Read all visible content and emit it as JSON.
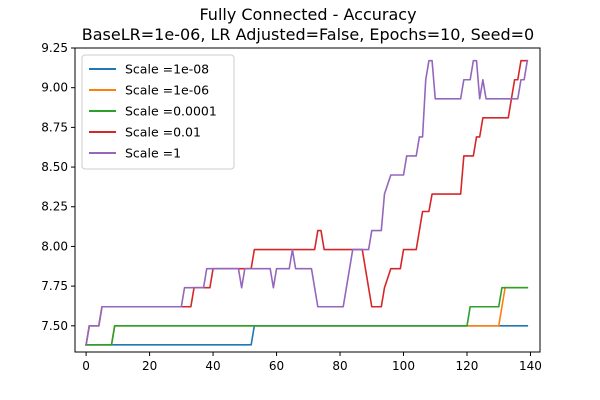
{
  "chart_data": {
    "type": "line",
    "title": "Fully Connected - Accuracy",
    "subtitle": "BaseLR=1e-06, LR Adjusted=False, Epochs=10, Seed=0",
    "xlabel": "",
    "ylabel": "",
    "xlim": [
      -3.5,
      143
    ],
    "ylim": [
      7.335,
      9.25
    ],
    "x_ticks": [
      0,
      20,
      40,
      60,
      80,
      100,
      120,
      140
    ],
    "x_tick_labels": [
      "0",
      "20",
      "40",
      "60",
      "80",
      "100",
      "120",
      "140"
    ],
    "y_ticks": [
      7.5,
      7.75,
      8.0,
      8.25,
      8.5,
      8.75,
      9.0,
      9.25
    ],
    "y_tick_labels": [
      "7.50",
      "7.75",
      "8.00",
      "8.25",
      "8.50",
      "8.75",
      "9.00",
      "9.25"
    ],
    "grid": false,
    "legend_position": "upper-left",
    "series": [
      {
        "name": "Scale =1e-08",
        "color": "#1f77b4",
        "points": [
          [
            0,
            7.38
          ],
          [
            52,
            7.38
          ],
          [
            53,
            7.5
          ],
          [
            139,
            7.5
          ]
        ]
      },
      {
        "name": "Scale =1e-06",
        "color": "#ff7f0e",
        "points": [
          [
            0,
            7.38
          ],
          [
            8,
            7.38
          ],
          [
            9,
            7.5
          ],
          [
            130,
            7.5
          ],
          [
            132,
            7.74
          ],
          [
            139,
            7.74
          ]
        ]
      },
      {
        "name": "Scale =0.0001",
        "color": "#2ca02c",
        "points": [
          [
            0,
            7.38
          ],
          [
            8,
            7.38
          ],
          [
            9,
            7.5
          ],
          [
            120,
            7.5
          ],
          [
            121,
            7.62
          ],
          [
            130,
            7.62
          ],
          [
            131,
            7.74
          ],
          [
            139,
            7.74
          ]
        ]
      },
      {
        "name": "Scale =0.01",
        "color": "#d62728",
        "points": [
          [
            0,
            7.38
          ],
          [
            1,
            7.5
          ],
          [
            4,
            7.5
          ],
          [
            5,
            7.62
          ],
          [
            33,
            7.62
          ],
          [
            34,
            7.74
          ],
          [
            39,
            7.74
          ],
          [
            40,
            7.86
          ],
          [
            52,
            7.86
          ],
          [
            53,
            7.98
          ],
          [
            72,
            7.98
          ],
          [
            73,
            8.1
          ],
          [
            74,
            8.1
          ],
          [
            75,
            7.98
          ],
          [
            87,
            7.98
          ],
          [
            89,
            7.74
          ],
          [
            90,
            7.62
          ],
          [
            93,
            7.62
          ],
          [
            94,
            7.74
          ],
          [
            96,
            7.86
          ],
          [
            99,
            7.86
          ],
          [
            100,
            7.98
          ],
          [
            104,
            7.98
          ],
          [
            106,
            8.22
          ],
          [
            108,
            8.22
          ],
          [
            109,
            8.33
          ],
          [
            118,
            8.33
          ],
          [
            119,
            8.57
          ],
          [
            122,
            8.57
          ],
          [
            123,
            8.69
          ],
          [
            124,
            8.69
          ],
          [
            125,
            8.81
          ],
          [
            133,
            8.81
          ],
          [
            134,
            8.93
          ],
          [
            135,
            9.05
          ],
          [
            136,
            9.05
          ],
          [
            137,
            9.17
          ],
          [
            139,
            9.17
          ]
        ]
      },
      {
        "name": "Scale =1",
        "color": "#9467bd",
        "points": [
          [
            0,
            7.38
          ],
          [
            1,
            7.5
          ],
          [
            4,
            7.5
          ],
          [
            5,
            7.62
          ],
          [
            30,
            7.62
          ],
          [
            31,
            7.74
          ],
          [
            37,
            7.74
          ],
          [
            38,
            7.86
          ],
          [
            48,
            7.86
          ],
          [
            49,
            7.74
          ],
          [
            50,
            7.86
          ],
          [
            58,
            7.86
          ],
          [
            59,
            7.74
          ],
          [
            60,
            7.86
          ],
          [
            64,
            7.86
          ],
          [
            65,
            7.98
          ],
          [
            66,
            7.86
          ],
          [
            71,
            7.86
          ],
          [
            72,
            7.74
          ],
          [
            73,
            7.62
          ],
          [
            81,
            7.62
          ],
          [
            82,
            7.74
          ],
          [
            84,
            7.98
          ],
          [
            89,
            7.98
          ],
          [
            90,
            8.1
          ],
          [
            93,
            8.1
          ],
          [
            94,
            8.33
          ],
          [
            96,
            8.45
          ],
          [
            100,
            8.45
          ],
          [
            101,
            8.57
          ],
          [
            104,
            8.57
          ],
          [
            105,
            8.69
          ],
          [
            106,
            8.69
          ],
          [
            107,
            9.05
          ],
          [
            108,
            9.17
          ],
          [
            109,
            9.17
          ],
          [
            110,
            8.93
          ],
          [
            118,
            8.93
          ],
          [
            119,
            9.05
          ],
          [
            121,
            9.05
          ],
          [
            122,
            9.17
          ],
          [
            123,
            9.17
          ],
          [
            124,
            8.93
          ],
          [
            125,
            9.05
          ],
          [
            126,
            8.93
          ],
          [
            136,
            8.93
          ],
          [
            137,
            9.05
          ],
          [
            138,
            9.05
          ],
          [
            139,
            9.17
          ]
        ]
      }
    ]
  }
}
